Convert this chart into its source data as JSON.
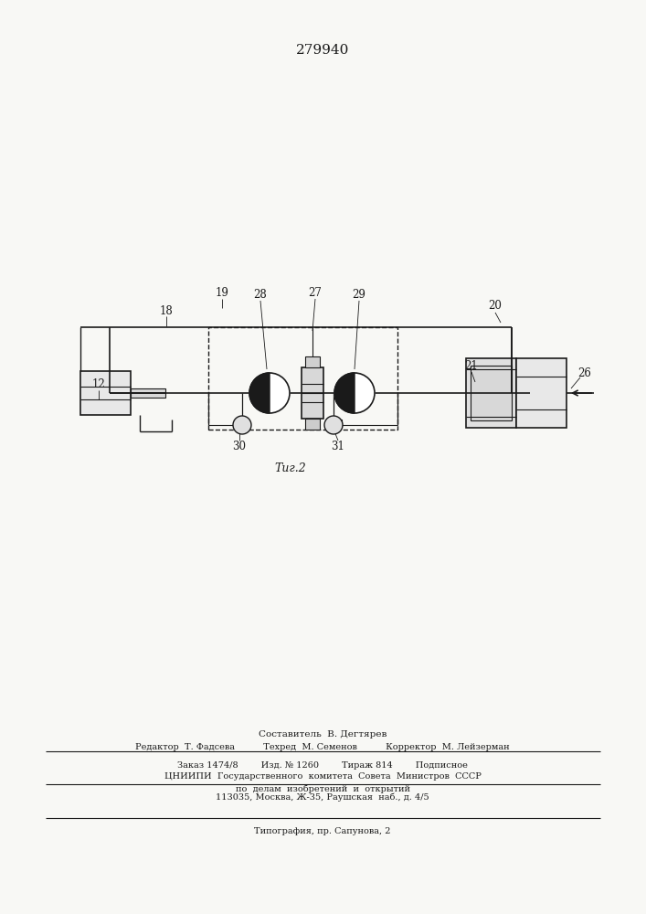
{
  "title": "279940",
  "fig_label": "Τиг.2",
  "bg_color": "#f8f8f5",
  "line_color": "#1a1a1a",
  "footer_lines": [
    "Составитель  В. Дегтярев",
    "Редактор  Т. Фадсева          Техред  М. Семенов          Корректор  М. Лейзерман",
    "Заказ 1474/8        Изд. № 1260        Тираж 814        Подписное",
    "ЦНИИПИ  Государственного  комитета  Совета  Министров  СССР",
    "по  делам  изобретений  и  открытий",
    "113035, Москва, Ж-35, Раушская  наб., д. 4/5",
    "Типография, пр. Сапунова, 2"
  ]
}
